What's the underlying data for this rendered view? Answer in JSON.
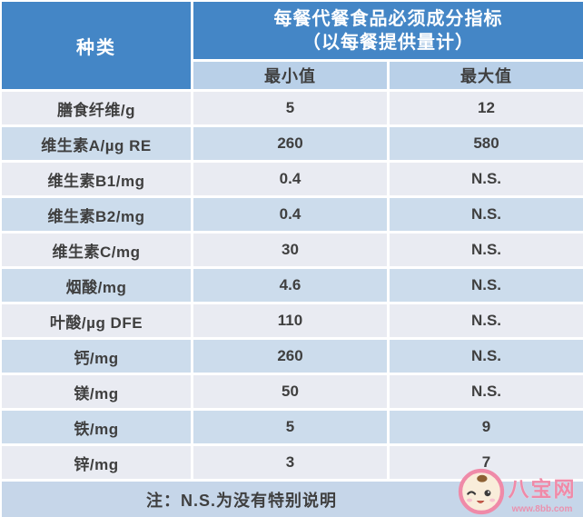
{
  "header": {
    "type_label": "种类",
    "title_line1": "每餐代餐食品必须成分指标",
    "title_line2": "（以每餐提供量计）",
    "min_label": "最小值",
    "max_label": "最大值"
  },
  "chart_data": {
    "type": "table",
    "title": "每餐代餐食品必须成分指标（以每餐提供量计）",
    "columns": [
      "种类",
      "最小值",
      "最大值"
    ],
    "rows": [
      {
        "label": "膳食纤维/g",
        "min": "5",
        "max": "12"
      },
      {
        "label": "维生素A/µg RE",
        "min": "260",
        "max": "580"
      },
      {
        "label": "维生素B1/mg",
        "min": "0.4",
        "max": "N.S."
      },
      {
        "label": "维生素B2/mg",
        "min": "0.4",
        "max": "N.S."
      },
      {
        "label": "维生素C/mg",
        "min": "30",
        "max": "N.S."
      },
      {
        "label": "烟酸/mg",
        "min": "4.6",
        "max": "N.S."
      },
      {
        "label": "叶酸/µg DFE",
        "min": "110",
        "max": "N.S."
      },
      {
        "label": "钙/mg",
        "min": "260",
        "max": "N.S."
      },
      {
        "label": "镁/mg",
        "min": "50",
        "max": "N.S."
      },
      {
        "label": "铁/mg",
        "min": "5",
        "max": "9"
      },
      {
        "label": "锌/mg",
        "min": "3",
        "max": "7"
      }
    ],
    "note": "注：N.S.为没有特别说明"
  },
  "watermark": {
    "site_name": "八宝网",
    "site_url": "www.8bb.com"
  },
  "colors": {
    "header_blue": "#4486c6",
    "subheader_blue": "#b9d0e8",
    "row_light": "#e9ebf2",
    "row_blue": "#ccdcec",
    "footer_blue": "#c6d6e9",
    "text_dark": "#3f3f3f",
    "watermark_pink": "#ef8aa8"
  }
}
